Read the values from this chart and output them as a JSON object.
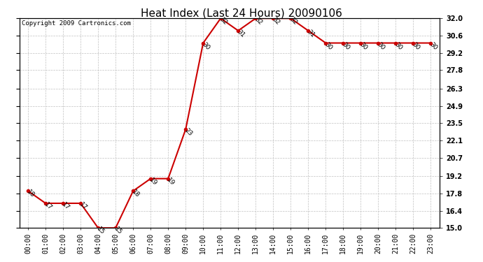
{
  "title": "Heat Index (Last 24 Hours) 20090106",
  "copyright": "Copyright 2009 Cartronics.com",
  "hours": [
    "00:00",
    "01:00",
    "02:00",
    "03:00",
    "04:00",
    "05:00",
    "06:00",
    "07:00",
    "08:00",
    "09:00",
    "10:00",
    "11:00",
    "12:00",
    "13:00",
    "14:00",
    "15:00",
    "16:00",
    "17:00",
    "18:00",
    "19:00",
    "20:00",
    "21:00",
    "22:00",
    "23:00"
  ],
  "values": [
    18,
    17,
    17,
    17,
    15,
    15,
    18,
    19,
    19,
    23,
    30,
    32,
    31,
    32,
    32,
    32,
    31,
    30,
    30,
    30,
    30,
    30,
    30,
    30
  ],
  "yticks": [
    15.0,
    16.4,
    17.8,
    19.2,
    20.7,
    22.1,
    23.5,
    24.9,
    26.3,
    27.8,
    29.2,
    30.6,
    32.0
  ],
  "ytick_labels": [
    "15.0",
    "16.4",
    "17.8",
    "19.2",
    "20.7",
    "22.1",
    "23.5",
    "24.9",
    "26.3",
    "27.8",
    "29.2",
    "30.6",
    "32.0"
  ],
  "ylim": [
    15.0,
    32.0
  ],
  "line_color": "#cc0000",
  "marker_color": "#cc0000",
  "bg_color": "#ffffff",
  "grid_color": "#c0c0c0",
  "title_fontsize": 11,
  "copyright_fontsize": 6.5,
  "tick_fontsize": 7,
  "label_fontsize": 6.5
}
